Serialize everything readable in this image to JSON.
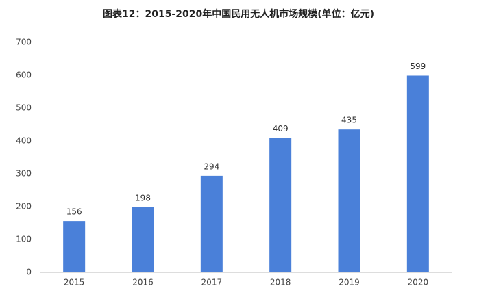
{
  "chart_data": {
    "type": "bar",
    "title": "图表12：2015-2020年中国民用无人机市场规模(单位：亿元)",
    "categories": [
      "2015",
      "2016",
      "2017",
      "2018",
      "2019",
      "2020"
    ],
    "values": [
      156,
      198,
      294,
      409,
      435,
      599
    ],
    "color": "#4a80d9",
    "ylim": [
      0,
      700
    ],
    "yticks": [
      0,
      100,
      200,
      300,
      400,
      500,
      600,
      700
    ],
    "grid": false
  }
}
